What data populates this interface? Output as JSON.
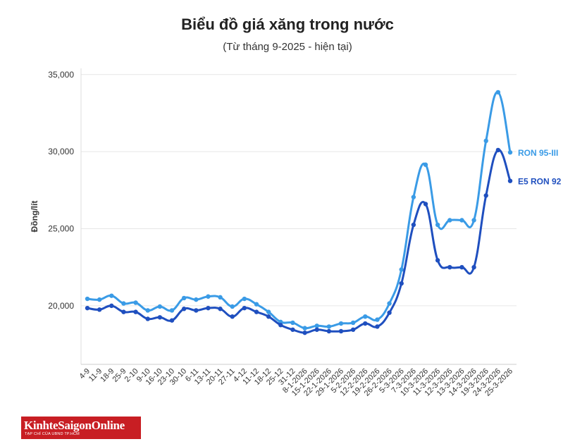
{
  "chart_data": {
    "type": "line",
    "title": "Biểu đồ giá xăng trong nước",
    "subtitle": "(Từ tháng 9-2025 - hiện tại)",
    "xlabel": "",
    "ylabel": "Đồng/lít",
    "ylim": [
      16200,
      35400
    ],
    "yticks": [
      20000,
      25000,
      30000,
      35000
    ],
    "ytick_labels": [
      "20,000",
      "25,000",
      "30,000",
      "35,000"
    ],
    "grid": true,
    "legend": "end-of-line labels",
    "x": [
      "4-9",
      "11-9",
      "18-9",
      "25-9",
      "2-10",
      "9-10",
      "16-10",
      "23-10",
      "30-10",
      "6-11",
      "13-11",
      "20-11",
      "27-11",
      "4-12",
      "11-12",
      "18-12",
      "25-12",
      "31-12",
      "8-1-2026",
      "15-1-2026",
      "22-1-2026",
      "29-1-2026",
      "5-2-2026",
      "12-2-2026",
      "19-2-2026",
      "26-2-2026",
      "5-3-2026",
      "7-3-2026",
      "10-3-2026",
      "11-3-2026",
      "12-3-2026",
      "13-3-2026",
      "14-3-2026",
      "19-3-2026",
      "24-3-2026",
      "25-3-2026"
    ],
    "series": [
      {
        "name": "RON 95-III",
        "color": "#3a9be6",
        "values": [
          20450,
          20400,
          20650,
          20150,
          20200,
          19700,
          19950,
          19700,
          20500,
          20400,
          20600,
          20550,
          19950,
          20450,
          20100,
          19600,
          18950,
          18900,
          18550,
          18700,
          18650,
          18850,
          18900,
          19300,
          19100,
          20150,
          22350,
          27050,
          29150,
          25250,
          25550,
          25550,
          25550,
          30700,
          33850,
          29950
        ]
      },
      {
        "name": "E5 RON 92",
        "color": "#1f4fbf",
        "values": [
          19850,
          19750,
          20000,
          19600,
          19600,
          19150,
          19250,
          19050,
          19800,
          19700,
          19850,
          19800,
          19300,
          19850,
          19600,
          19300,
          18750,
          18450,
          18250,
          18450,
          18350,
          18350,
          18450,
          18850,
          18650,
          19550,
          21450,
          25250,
          26600,
          22950,
          22500,
          22500,
          22500,
          27150,
          30100,
          28100
        ]
      }
    ]
  },
  "brand": {
    "logo_text": "KinhteSaigonOnline",
    "logo_tagline": "TẠP CHÍ CỦA UBND TP.HCM",
    "logo_bg": "#c81e23"
  }
}
